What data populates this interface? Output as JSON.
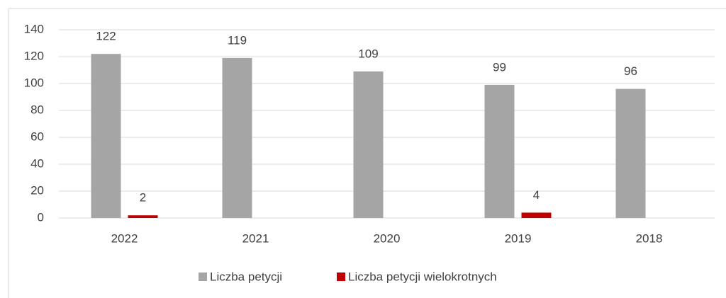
{
  "chart_data": {
    "type": "bar",
    "categories": [
      "2022",
      "2021",
      "2020",
      "2019",
      "2018"
    ],
    "series": [
      {
        "name": "Liczba petycji",
        "color": "#a5a5a5",
        "values": [
          122,
          119,
          109,
          99,
          96
        ]
      },
      {
        "name": "Liczba petycji wielokrotnych",
        "color": "#c00000",
        "values": [
          2,
          null,
          null,
          4,
          null
        ]
      }
    ],
    "ylim": [
      0,
      140
    ],
    "yticks": [
      0,
      20,
      40,
      60,
      80,
      100,
      120,
      140
    ],
    "grid": true,
    "legend": "bottom"
  }
}
